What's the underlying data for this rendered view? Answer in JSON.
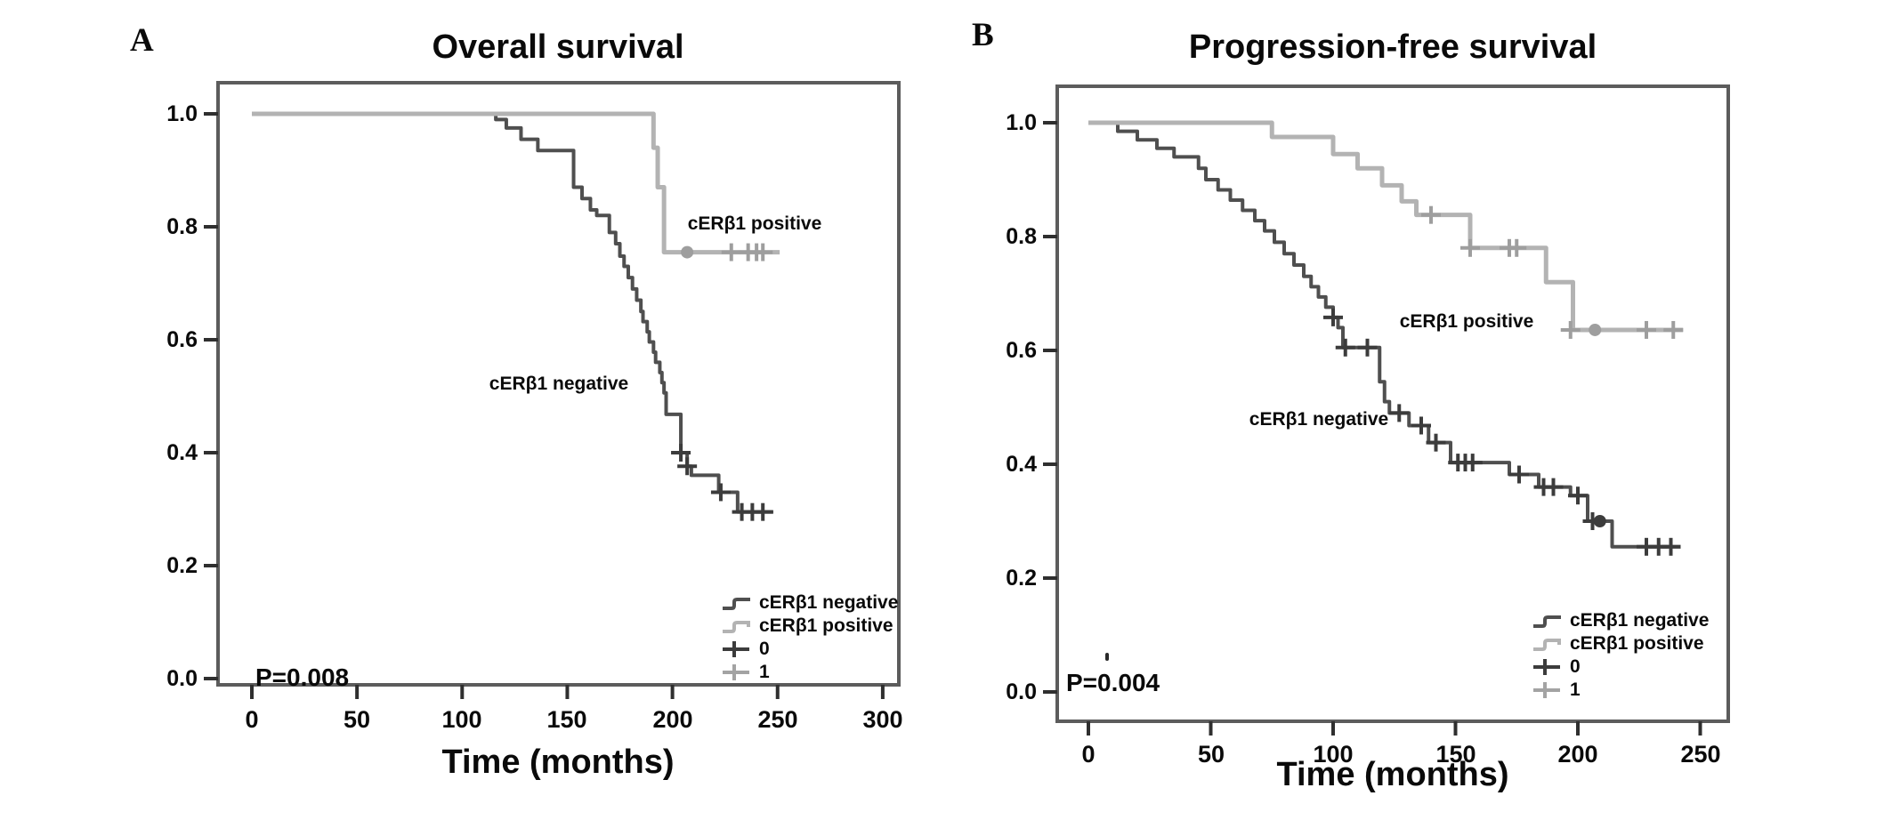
{
  "figure_background": "#ffffff",
  "panel_a": {
    "panel_label": "A",
    "title": "Overall survival",
    "x_axis_label": "Time (months)",
    "p_value": "P=0.008",
    "x_ticks": [
      "0",
      "50",
      "100",
      "150",
      "200",
      "250",
      "300"
    ],
    "y_ticks": [
      "1.0",
      "0.8",
      "0.6",
      "0.4",
      "0.2",
      "0.0"
    ],
    "curve_labels": {
      "positive": "cERβ1 positive",
      "negative": "cERβ1 negative"
    },
    "legend": [
      {
        "label": "cERβ1 negative",
        "glyph": "step-line",
        "color": "#4f4f4f"
      },
      {
        "label": "cERβ1 positive",
        "glyph": "step-line",
        "color": "#b3b3b3"
      },
      {
        "label": "0",
        "glyph": "plus-censor",
        "color": "#3c3c3c"
      },
      {
        "label": "1",
        "glyph": "plus-censor",
        "color": "#a3a3a3"
      }
    ]
  },
  "panel_b": {
    "panel_label": "B",
    "title": "Progression-free survival",
    "x_axis_label": "Time (months)",
    "p_value": "P=0.004",
    "x_ticks": [
      "0",
      "50",
      "100",
      "150",
      "200",
      "250"
    ],
    "y_ticks": [
      "1.0",
      "0.8",
      "0.6",
      "0.4",
      "0.2",
      "0.0"
    ],
    "curve_labels": {
      "positive": "cERβ1 positive",
      "negative": "cERβ1 negative"
    },
    "legend": [
      {
        "label": "cERβ1 negative",
        "glyph": "step-line",
        "color": "#4f4f4f"
      },
      {
        "label": "cERβ1 positive",
        "glyph": "step-line",
        "color": "#b3b3b3"
      },
      {
        "label": "0",
        "glyph": "plus-censor",
        "color": "#3c3c3c"
      },
      {
        "label": "1",
        "glyph": "plus-censor",
        "color": "#a3a3a3"
      }
    ]
  },
  "chart_data": [
    {
      "type": "line",
      "subtype": "kaplan_meier_step",
      "title": "Overall survival",
      "xlabel": "Time (months)",
      "ylabel": "",
      "p_value": "P=0.008",
      "xlim": [
        0,
        300
      ],
      "ylim": [
        0.0,
        1.0
      ],
      "x_tick_values": [
        0,
        50,
        100,
        150,
        200,
        250,
        300
      ],
      "y_tick_values": [
        1.0,
        0.8,
        0.6,
        0.4,
        0.2,
        0.0
      ],
      "grid": false,
      "legend_position": "inside-lower-right",
      "frame_color": "#5c5c5c",
      "tick_color": "#2f2f2f",
      "series": [
        {
          "id": "negative",
          "name": "cERβ1 negative",
          "color": "#4f4f4f",
          "censor_color": "#3c3c3c",
          "width": 4,
          "steps": [
            [
              0,
              1.0
            ],
            [
              116,
              0.99
            ],
            [
              121,
              0.975
            ],
            [
              128,
              0.955
            ],
            [
              136,
              0.935
            ],
            [
              153,
              0.87
            ],
            [
              157,
              0.85
            ],
            [
              161,
              0.83
            ],
            [
              164,
              0.82
            ],
            [
              170,
              0.79
            ],
            [
              173,
              0.77
            ],
            [
              175,
              0.748
            ],
            [
              177,
              0.73
            ],
            [
              179,
              0.71
            ],
            [
              181,
              0.69
            ],
            [
              183,
              0.67
            ],
            [
              185,
              0.65
            ],
            [
              186,
              0.632
            ],
            [
              188,
              0.614
            ],
            [
              189,
              0.596
            ],
            [
              191,
              0.578
            ],
            [
              192,
              0.56
            ],
            [
              194,
              0.542
            ],
            [
              195,
              0.524
            ],
            [
              196,
              0.506
            ],
            [
              197,
              0.468
            ],
            [
              204,
              0.4
            ],
            [
              207,
              0.376
            ],
            [
              209,
              0.36
            ],
            [
              222,
              0.33
            ],
            [
              231,
              0.295
            ]
          ],
          "end_t": 248,
          "censors": [
            [
              204,
              0.4
            ],
            [
              207,
              0.376
            ],
            [
              223,
              0.33
            ],
            [
              233,
              0.295
            ],
            [
              238,
              0.295
            ],
            [
              243,
              0.295
            ]
          ],
          "blobs": []
        },
        {
          "id": "positive",
          "name": "cERβ1 positive",
          "color": "#b3b3b3",
          "censor_color": "#9e9e9e",
          "width": 5,
          "steps": [
            [
              0,
              1.0
            ],
            [
              191,
              0.94
            ],
            [
              193,
              0.87
            ],
            [
              196,
              0.755
            ]
          ],
          "end_t": 251,
          "censors": [
            [
              228,
              0.755
            ],
            [
              236,
              0.755
            ],
            [
              240,
              0.755
            ],
            [
              243,
              0.755
            ]
          ],
          "blobs": [
            [
              207,
              0.755
            ]
          ]
        }
      ]
    },
    {
      "type": "line",
      "subtype": "kaplan_meier_step",
      "title": "Progression-free survival",
      "xlabel": "Time (months)",
      "ylabel": "",
      "p_value": "P=0.004",
      "xlim": [
        0,
        250
      ],
      "ylim": [
        0.0,
        1.0
      ],
      "x_tick_values": [
        0,
        50,
        100,
        150,
        200,
        250
      ],
      "y_tick_values": [
        1.0,
        0.8,
        0.6,
        0.4,
        0.2,
        0.0
      ],
      "grid": false,
      "legend_position": "inside-lower-right",
      "frame_color": "#5c5c5c",
      "tick_color": "#2f2f2f",
      "series": [
        {
          "id": "negative",
          "name": "cERβ1 negative",
          "color": "#4f4f4f",
          "censor_color": "#3c3c3c",
          "width": 4,
          "steps": [
            [
              0,
              1.0
            ],
            [
              12,
              0.985
            ],
            [
              20,
              0.97
            ],
            [
              28,
              0.955
            ],
            [
              35,
              0.94
            ],
            [
              45,
              0.92
            ],
            [
              48,
              0.9
            ],
            [
              53,
              0.882
            ],
            [
              58,
              0.864
            ],
            [
              63,
              0.846
            ],
            [
              68,
              0.828
            ],
            [
              72,
              0.81
            ],
            [
              76,
              0.79
            ],
            [
              80,
              0.77
            ],
            [
              84,
              0.75
            ],
            [
              88,
              0.73
            ],
            [
              91,
              0.712
            ],
            [
              94,
              0.694
            ],
            [
              97,
              0.676
            ],
            [
              100,
              0.658
            ],
            [
              102,
              0.64
            ],
            [
              104,
              0.605
            ],
            [
              119,
              0.545
            ],
            [
              121,
              0.51
            ],
            [
              123,
              0.49
            ],
            [
              131,
              0.468
            ],
            [
              139,
              0.438
            ],
            [
              148,
              0.403
            ],
            [
              172,
              0.382
            ],
            [
              184,
              0.36
            ],
            [
              197,
              0.345
            ],
            [
              204,
              0.3
            ],
            [
              214,
              0.255
            ]
          ],
          "end_t": 242,
          "censors": [
            [
              100,
              0.658
            ],
            [
              105,
              0.605
            ],
            [
              114,
              0.605
            ],
            [
              127,
              0.49
            ],
            [
              136,
              0.468
            ],
            [
              142,
              0.438
            ],
            [
              151,
              0.403
            ],
            [
              154,
              0.403
            ],
            [
              157,
              0.403
            ],
            [
              176,
              0.382
            ],
            [
              186,
              0.36
            ],
            [
              190,
              0.36
            ],
            [
              200,
              0.345
            ],
            [
              206,
              0.3
            ],
            [
              228,
              0.255
            ],
            [
              233,
              0.255
            ],
            [
              238,
              0.255
            ]
          ],
          "blobs": [
            [
              209,
              0.3
            ]
          ]
        },
        {
          "id": "positive",
          "name": "cERβ1 positive",
          "color": "#b3b3b3",
          "censor_color": "#9e9e9e",
          "width": 5,
          "steps": [
            [
              0,
              1.0
            ],
            [
              75,
              0.975
            ],
            [
              100,
              0.945
            ],
            [
              110,
              0.92
            ],
            [
              120,
              0.89
            ],
            [
              128,
              0.862
            ],
            [
              134,
              0.838
            ],
            [
              156,
              0.78
            ],
            [
              187,
              0.72
            ],
            [
              198,
              0.636
            ]
          ],
          "end_t": 243,
          "censors": [
            [
              140,
              0.838
            ],
            [
              156,
              0.78
            ],
            [
              172,
              0.78
            ],
            [
              175,
              0.78
            ],
            [
              197,
              0.636
            ],
            [
              228,
              0.636
            ],
            [
              239,
              0.636
            ]
          ],
          "blobs": [
            [
              207,
              0.636
            ]
          ]
        }
      ]
    }
  ]
}
